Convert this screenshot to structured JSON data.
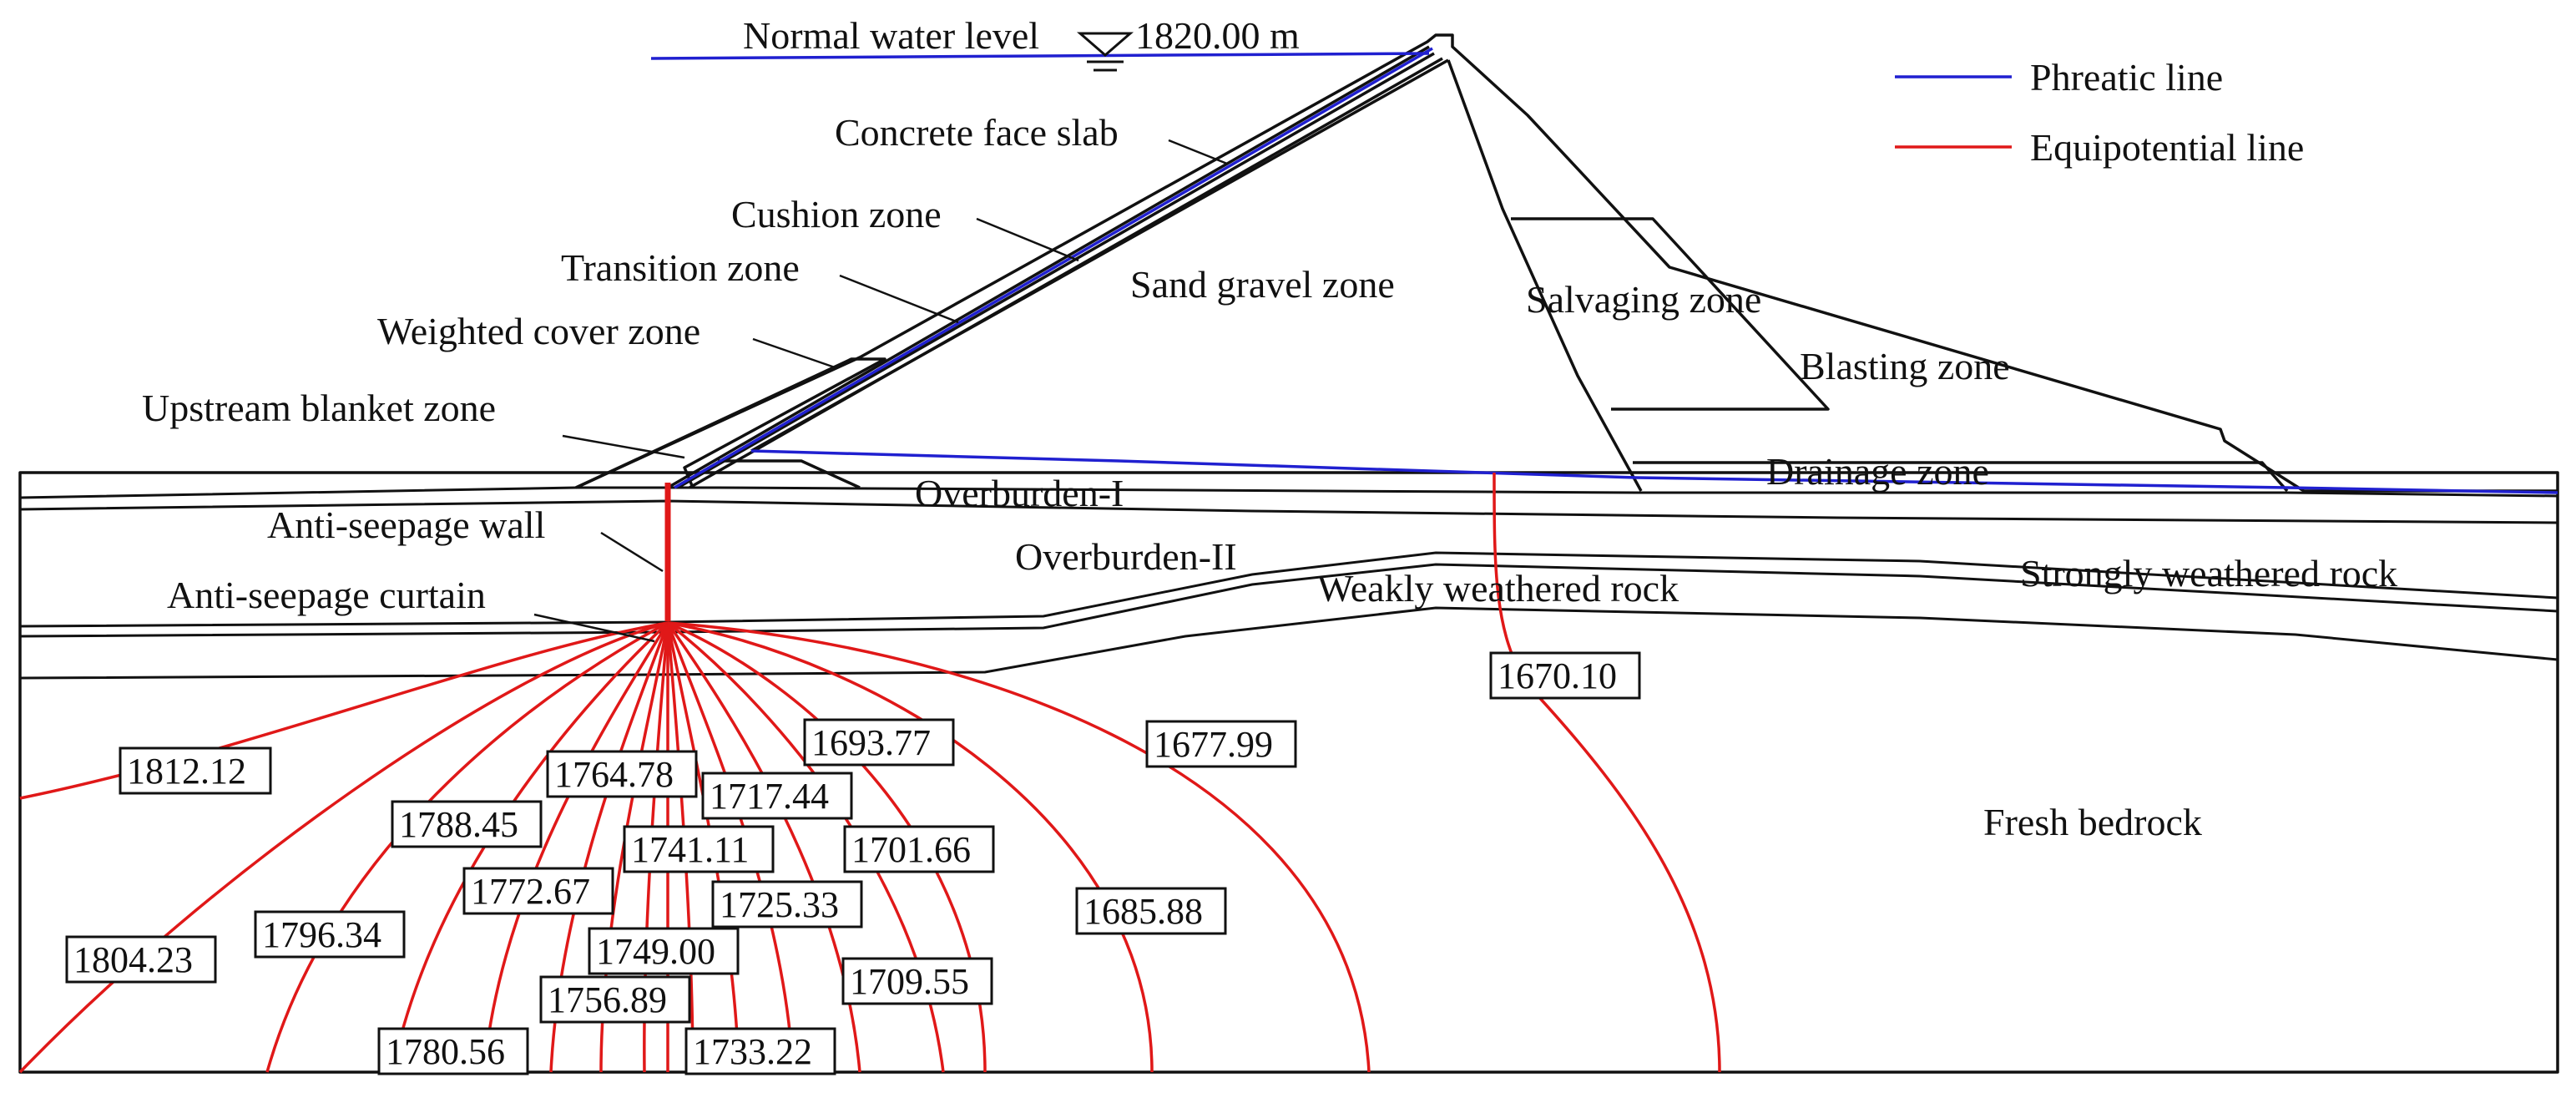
{
  "water_level": {
    "label": "Normal water level",
    "value": "1820.00 m"
  },
  "legend": [
    {
      "label": "Phreatic line",
      "color": "#2020d0"
    },
    {
      "label": "Equipotential line",
      "color": "#e01818"
    }
  ],
  "zones": [
    "Concrete face slab",
    "Cushion zone",
    "Transition zone",
    "Weighted cover zone",
    "Upstream blanket zone",
    "Anti-seepage wall",
    "Anti-seepage curtain",
    "Sand gravel zone",
    "Salvaging zone",
    "Blasting zone",
    "Drainage zone",
    "Overburden-I",
    "Overburden-II",
    "Weakly weathered rock",
    "Strongly weathered rock",
    "Fresh bedrock"
  ],
  "equipotential_values": [
    "1812.12",
    "1804.23",
    "1796.34",
    "1788.45",
    "1780.56",
    "1772.67",
    "1764.78",
    "1756.89",
    "1749.00",
    "1741.11",
    "1733.22",
    "1725.33",
    "1717.44",
    "1709.55",
    "1701.66",
    "1693.77",
    "1685.88",
    "1677.99",
    "1670.10"
  ]
}
